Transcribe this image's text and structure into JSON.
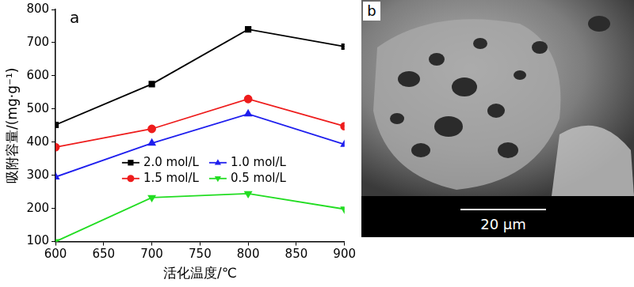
{
  "chart_data": {
    "type": "line",
    "x_label": "活化温度/℃",
    "y_label": "吸附容量/(mg·g⁻¹)",
    "annotations": [
      {
        "text": "a"
      }
    ],
    "x": [
      600,
      700,
      800,
      900
    ],
    "series": [
      {
        "name": "2.0 mol/L",
        "color": "#000000",
        "marker": "square",
        "values": [
          452,
          575,
          740,
          688
        ]
      },
      {
        "name": "1.5 mol/L",
        "color": "#ee1c1c",
        "marker": "circle",
        "values": [
          385,
          440,
          530,
          448
        ]
      },
      {
        "name": "1.0 mol/L",
        "color": "#1f1fee",
        "marker": "triangle-up",
        "values": [
          295,
          397,
          485,
          393
        ]
      },
      {
        "name": "0.5 mol/L",
        "color": "#22dd22",
        "marker": "triangle-down",
        "values": [
          100,
          233,
          245,
          198
        ]
      }
    ],
    "xlim": [
      600,
      900
    ],
    "xticks": [
      600,
      650,
      700,
      750,
      800,
      850,
      900
    ],
    "ylim": [
      100,
      800
    ],
    "yticks": [
      100,
      200,
      300,
      400,
      500,
      600,
      700,
      800
    ],
    "grid": false,
    "legend": "center"
  },
  "image_b": {
    "label": "b",
    "scale_bar": "20 μm"
  }
}
